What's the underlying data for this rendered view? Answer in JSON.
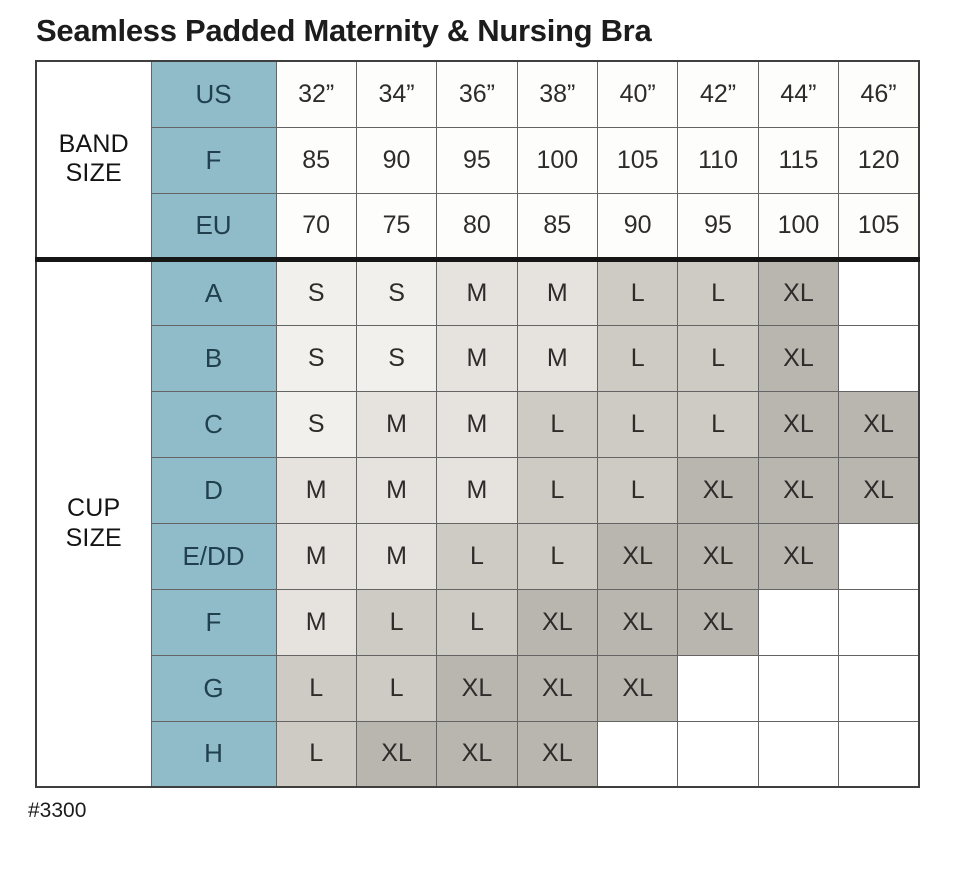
{
  "title": "Seamless Padded Maternity & Nursing Bra",
  "footer": "#3300",
  "colors": {
    "header_fill": "#90bcca",
    "header_text": "#20404d",
    "size_s_fill": "#f2f0ec",
    "size_m_fill": "#e6e3de",
    "size_l_fill": "#cecbc5",
    "size_xl_fill": "#b9b6b0",
    "empty_fill": "#ffffff",
    "grid_line": "#646464",
    "section_divider": "#161616",
    "text": "#2e2c2a"
  },
  "chart_data": {
    "type": "table",
    "title": "Seamless Padded Maternity & Nursing Bra",
    "sections": [
      {
        "label": "BAND SIZE",
        "rows": [
          {
            "header": "US",
            "values": [
              "32”",
              "34”",
              "36”",
              "38”",
              "40”",
              "42”",
              "44”",
              "46”"
            ]
          },
          {
            "header": "F",
            "values": [
              "85",
              "90",
              "95",
              "100",
              "105",
              "110",
              "115",
              "120"
            ]
          },
          {
            "header": "EU",
            "values": [
              "70",
              "75",
              "80",
              "85",
              "90",
              "95",
              "100",
              "105"
            ]
          }
        ]
      },
      {
        "label": "CUP SIZE",
        "rows": [
          {
            "header": "A",
            "values": [
              "S",
              "S",
              "M",
              "M",
              "L",
              "L",
              "XL",
              ""
            ]
          },
          {
            "header": "B",
            "values": [
              "S",
              "S",
              "M",
              "M",
              "L",
              "L",
              "XL",
              ""
            ]
          },
          {
            "header": "C",
            "values": [
              "S",
              "M",
              "M",
              "L",
              "L",
              "L",
              "XL",
              "XL"
            ]
          },
          {
            "header": "D",
            "values": [
              "M",
              "M",
              "M",
              "L",
              "L",
              "XL",
              "XL",
              "XL"
            ]
          },
          {
            "header": "E/DD",
            "values": [
              "M",
              "M",
              "L",
              "L",
              "XL",
              "XL",
              "XL",
              ""
            ]
          },
          {
            "header": "F",
            "values": [
              "M",
              "L",
              "L",
              "XL",
              "XL",
              "XL",
              "",
              ""
            ]
          },
          {
            "header": "G",
            "values": [
              "L",
              "L",
              "XL",
              "XL",
              "XL",
              "",
              "",
              ""
            ]
          },
          {
            "header": "H",
            "values": [
              "L",
              "XL",
              "XL",
              "XL",
              "",
              "",
              "",
              ""
            ]
          }
        ]
      }
    ]
  }
}
